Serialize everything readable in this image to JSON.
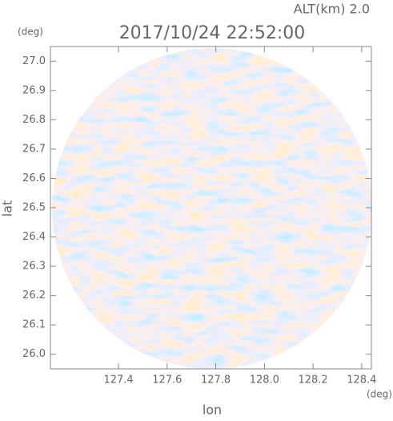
{
  "chart_data": {
    "type": "radar-ppi",
    "title": "2017/10/24 22:52:00",
    "subtitle": "ALT(km) 2.0",
    "x_label": "lon",
    "y_label": "lat",
    "x_unit": "(deg)",
    "y_unit": "(deg)",
    "xlim": [
      127.12,
      128.44
    ],
    "ylim": [
      25.95,
      27.05
    ],
    "xticks": [
      127.4,
      127.6,
      127.8,
      {
        "value": 128,
        "label": "128.0"
      },
      128.2,
      128.4
    ],
    "yticks": [
      {
        "value": 26,
        "label": "26.0"
      },
      26.1,
      26.2,
      26.3,
      26.4,
      26.5,
      26.6,
      26.7,
      26.8,
      26.9,
      {
        "value": 27,
        "label": "27.0"
      }
    ]
  }
}
